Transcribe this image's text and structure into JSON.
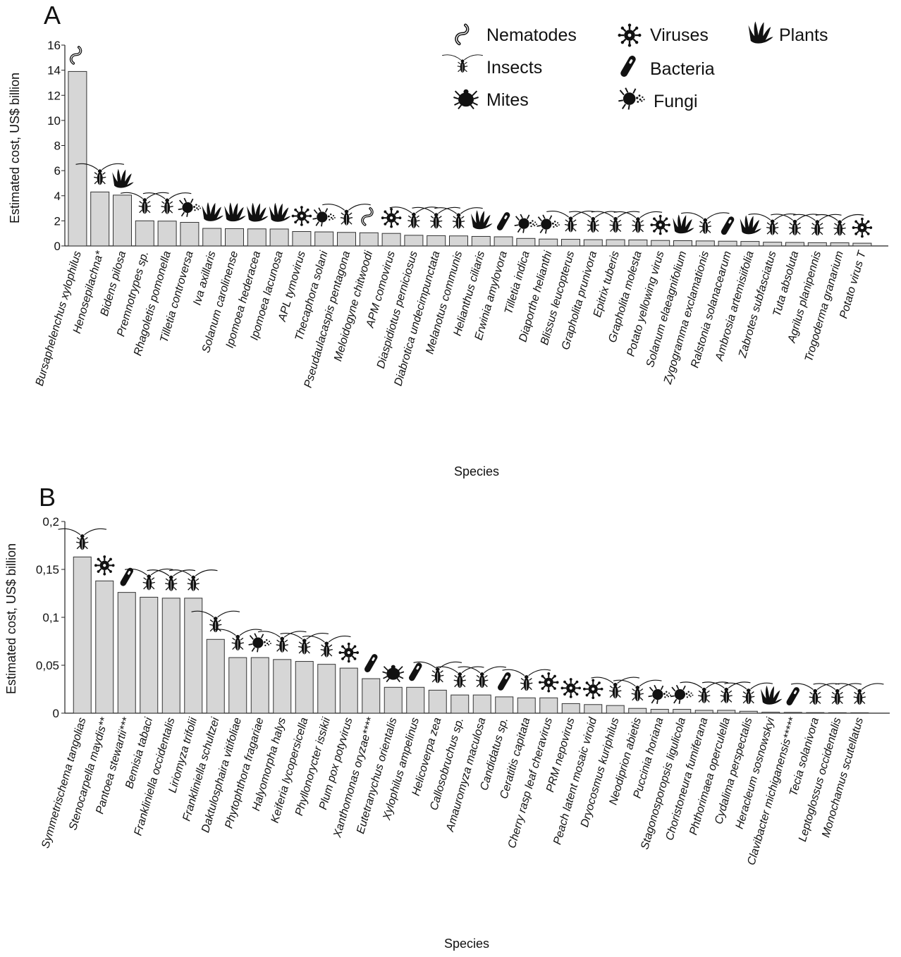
{
  "chart_data": [
    {
      "type": "bar",
      "panel": "A",
      "ylabel": "Estimated cost, US$ billion",
      "xlabel": "Species",
      "ylim": [
        0,
        16
      ],
      "yticks": [
        "0",
        "2",
        "4",
        "6",
        "8",
        "10",
        "12",
        "14",
        "16"
      ],
      "categories": [
        "Bursaphelenchus xylophilus",
        "Henosepilachna*",
        "Bidens pilosa",
        "Premnotrypes sp.",
        "Rhagoletis pomonella",
        "Tilletia controversa",
        "Iva axillaris",
        "Solanum carolinense",
        "Ipomoea hederacea",
        "Ipomoea lacunosa",
        "APL tymovirus",
        "Thecaphora solani",
        "Pseudaulacaspis pentagona",
        "Meloidogyne chitwoodi",
        "APM comovirus",
        "Diaspidiotus perniciosus",
        "Diabrotica undecimpunctata",
        "Melanotus communis",
        "Helianthus ciliaris",
        "Erwinia amylovora",
        "Tilletia indica",
        "Diaporthe helianthi",
        "Blissus leucopterus",
        "Grapholita prunivora",
        "Epitrix tuberis",
        "Grapholita molesta",
        "Potato yellowing virus",
        "Solanum elaeagnifolium",
        "Zygogramma exclamationis",
        "Ralstonia solanacearum",
        "Ambrosia artemisiifolia",
        "Zabrotes subfasciatus",
        "Tuta absoluta",
        "Agrilus planipennis",
        "Trogoderma granarium",
        "Potato virus T"
      ],
      "values": [
        13.9,
        4.3,
        4.05,
        2.0,
        1.98,
        1.88,
        1.4,
        1.38,
        1.36,
        1.35,
        1.15,
        1.12,
        1.08,
        1.05,
        1.0,
        0.85,
        0.82,
        0.8,
        0.76,
        0.73,
        0.6,
        0.55,
        0.53,
        0.5,
        0.5,
        0.48,
        0.44,
        0.42,
        0.4,
        0.38,
        0.36,
        0.3,
        0.28,
        0.26,
        0.25,
        0.22
      ],
      "groups": [
        "nematode",
        "insect",
        "plant",
        "insect",
        "insect",
        "fungus",
        "plant",
        "plant",
        "plant",
        "plant",
        "virus",
        "fungus",
        "insect",
        "nematode",
        "virus",
        "insect",
        "insect",
        "insect",
        "plant",
        "bacterium",
        "fungus",
        "fungus",
        "insect",
        "insect",
        "insect",
        "insect",
        "virus",
        "plant",
        "insect",
        "bacterium",
        "plant",
        "insect",
        "insect",
        "insect",
        "insect",
        "virus"
      ],
      "legend": [
        {
          "key": "nematode",
          "label": "Nematodes",
          "icon": "nematode-icon"
        },
        {
          "key": "virus",
          "label": "Viruses",
          "icon": "virus-icon"
        },
        {
          "key": "plant",
          "label": "Plants",
          "icon": "plant-icon"
        },
        {
          "key": "insect",
          "label": "Insects",
          "icon": "insect-icon"
        },
        {
          "key": "bacterium",
          "label": "Bacteria",
          "icon": "bacterium-icon"
        },
        {
          "key": "mite",
          "label": "Mites",
          "icon": "mite-icon"
        },
        {
          "key": "fungus",
          "label": "Fungi",
          "icon": "fungus-icon"
        }
      ],
      "legend_position": "top-right",
      "grid": false,
      "bar_color": "#d6d6d6",
      "icon_color": "#111111"
    },
    {
      "type": "bar",
      "panel": "B",
      "ylabel": "Estimated cost, US$ billion",
      "xlabel": "Species",
      "ylim": [
        0,
        0.2
      ],
      "yticks": [
        "0",
        "0,05",
        "0,1",
        "0,15",
        "0,2"
      ],
      "categories": [
        "Symmetrischema tangolias",
        "Stenocarpella maydis**",
        "Pantoea stewartii***",
        "Bemisia tabaci",
        "Frankliniella occidentalis",
        "Liriomyza trifolii",
        "Frankliniella schultzei",
        "Daktulosphaira vitifoliae",
        "Phytophthora fragariae",
        "Halyomorpha halys",
        "Keiferia lycopersicella",
        "Phyllonorycter issikii",
        "Plum  pox  potyvirus",
        "Xanthomonas oryzae****",
        "Eutetranychus orientalis",
        "Xylophilus ampelinus",
        "Helicoverpa zea",
        "Callosobruchus sp.",
        "Amauromyza maculosa",
        "Candidatus sp.",
        "Ceratitis capitata",
        "Cherry rasp leaf cheravirus",
        "PRM  nepovirus",
        "Peach latent mosaic viroid",
        "Dryocosmus kuriphilus",
        "Neodiprion abietis",
        "Puccinia horiana",
        "Stagonosporopsis ligulicola",
        "Choristoneura fumiferana",
        "Phthorimaea operculella",
        "Cydalima perspectalis",
        "Heracleum sosnowskyi",
        "Clavibacter michiganensis*****",
        "Tecia solanivora",
        "Leptoglossus occidentalis",
        "Monochamus scutellatus"
      ],
      "values": [
        0.163,
        0.138,
        0.126,
        0.121,
        0.12,
        0.12,
        0.077,
        0.058,
        0.058,
        0.056,
        0.054,
        0.051,
        0.047,
        0.036,
        0.027,
        0.027,
        0.024,
        0.019,
        0.019,
        0.017,
        0.016,
        0.016,
        0.01,
        0.009,
        0.008,
        0.005,
        0.004,
        0.004,
        0.003,
        0.003,
        0.002,
        0.001,
        0.0008,
        0.0006,
        0.0005,
        0.0004
      ],
      "groups": [
        "insect",
        "virus",
        "bacterium",
        "insect",
        "insect",
        "insect",
        "insect",
        "insect",
        "fungus",
        "insect",
        "insect",
        "insect",
        "virus",
        "bacterium",
        "mite",
        "bacterium",
        "insect",
        "insect",
        "insect",
        "bacterium",
        "insect",
        "virus",
        "virus",
        "virus",
        "insect",
        "insect",
        "fungus",
        "fungus",
        "insect",
        "insect",
        "insect",
        "plant",
        "bacterium",
        "insect",
        "insect",
        "insect"
      ],
      "grid": false,
      "bar_color": "#d6d6d6",
      "icon_color": "#111111"
    }
  ]
}
